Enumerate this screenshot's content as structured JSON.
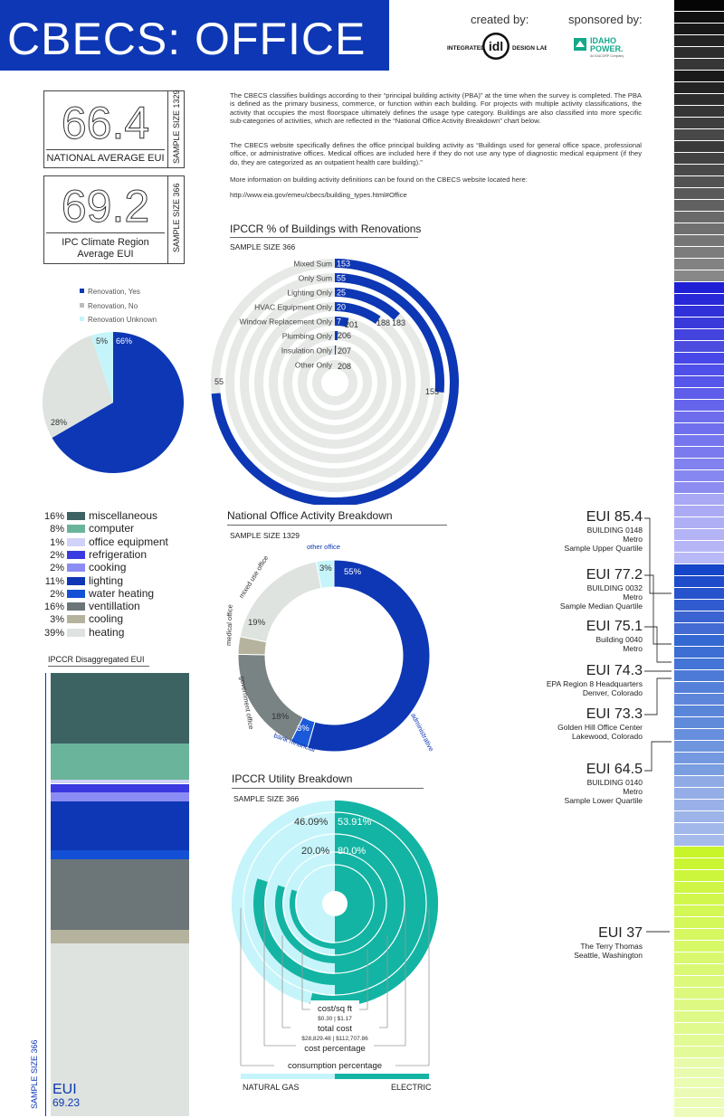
{
  "header": {
    "title": "CBECS: OFFICE",
    "created_by": "created by:",
    "sponsored_by": "sponsored by:",
    "idl_logo_text": "INTEGRATED idl DESIGN LAB",
    "idaho_power_logo_text": "IDAHO POWER An IDACORP Company"
  },
  "stats": {
    "national": {
      "value": "66.4",
      "caption": "NATIONAL AVERAGE EUI",
      "sample": "SAMPLE SIZE 1329"
    },
    "region": {
      "value": "69.2",
      "caption": "IPC Climate Region Average EUI",
      "sample": "SAMPLE SIZE 366"
    }
  },
  "intro": {
    "p1": "The CBECS classifies buildings according to their “principal building activity (PBA)” at the time when the survey is completed.  The PBA is defined as the primary business, commerce, or function within each building.  For projects with multiple activity classifications, the activity that occupies the most floorspace ultimately defines the usage type category.  Buildings are also classified into more specific sub-categories of activities, which are reflected in the “National Office Activity Breakdown” chart below.",
    "p2": "The CBECS website specifically defines the office principal building activity as “Buildings used for general office space, professional office, or administrative offices. Medical offices are included here if they do not use any type of diagnostic medical equipment (if they do, they are categorized as an outpatient health care building).”",
    "p3": "More information on building activity definitions can be found on the CBECS website located here:",
    "url": "http://www.eia.gov/emeu/cbecs/building_types.html#Office"
  },
  "chart_data": [
    {
      "id": "renovation-pie",
      "type": "pie",
      "labels": [
        "Renovation, Yes",
        "Renovation, No",
        "Renovation Unknown"
      ],
      "values": [
        66,
        28,
        5
      ],
      "value_labels": [
        "66%",
        "28%",
        "5%"
      ],
      "colors": [
        "#0d37b4",
        "#dee3df",
        "#c5f5fa"
      ]
    },
    {
      "id": "renovation-radial",
      "type": "bar",
      "title": "IPCCR % of Buildings with Renovations",
      "sample": "SAMPLE SIZE 366",
      "categories": [
        "Mixed Sum",
        "Only Sum",
        "Lighting Only",
        "HVAC Equipment Only",
        "Window Replacement Only",
        "Plumbing Only",
        "Insulation Only",
        "Other Only"
      ],
      "series": [
        {
          "name": "Renovation",
          "values": [
            153,
            55,
            25,
            20,
            7,
            2,
            1,
            0
          ]
        },
        {
          "name": "No Renovation",
          "values": [
            55,
            153,
            183,
            188,
            201,
            206,
            207,
            208
          ]
        }
      ],
      "total": 208,
      "yes_labels": [
        "153",
        "55",
        "25",
        "20",
        "7",
        "",
        "",
        ""
      ],
      "no_labels": [
        "55",
        "153",
        "183",
        "188",
        "201",
        "206",
        "207",
        "208"
      ]
    },
    {
      "id": "end-use",
      "type": "bar",
      "title": "IPCCR Disaggregated EUI",
      "categories": [
        "miscellaneous",
        "computer",
        "office equipment",
        "refrigeration",
        "cooking",
        "lighting",
        "water heating",
        "ventillation",
        "cooling",
        "heating"
      ],
      "values": [
        16,
        8,
        1,
        2,
        2,
        11,
        2,
        16,
        3,
        39
      ],
      "value_labels": [
        "16%",
        "8%",
        "1%",
        "2%",
        "2%",
        "11%",
        "2%",
        "16%",
        "3%",
        "39%"
      ],
      "colors": [
        "#3d6262",
        "#6ab49b",
        "#d1d2f8",
        "#3a3ae0",
        "#8c8cf5",
        "#0d37b4",
        "#1350d6",
        "#6c7678",
        "#b5b39d",
        "#dee3df"
      ],
      "sample": "SAMPLE SIZE 366",
      "eui_label": "EUI",
      "eui_value": "69.23"
    },
    {
      "id": "activity-donut",
      "type": "pie",
      "title": "National Office Activity Breakdown",
      "sample": "SAMPLE SIZE 1329",
      "labels": [
        "administrative",
        "bank /financial",
        "government office",
        "medical office",
        "mixed use office",
        "other office"
      ],
      "values": [
        55,
        3,
        18,
        3,
        19,
        3
      ],
      "value_labels": [
        "55%",
        "3%",
        "18%",
        "3%",
        "19%",
        "3%"
      ],
      "colors": [
        "#0d37b4",
        "#1a5ad8",
        "#7a8384",
        "#b5b39d",
        "#dee3df",
        "#c5f5fa"
      ]
    },
    {
      "id": "utility",
      "type": "pie",
      "title": "IPCCR Utility Breakdown",
      "sample": "SAMPLE SIZE 366",
      "categories": [
        "consumption percentage",
        "cost percentage",
        "total cost",
        "cost/sq ft"
      ],
      "series": [
        {
          "name": "NATURAL GAS",
          "values": [
            46.09,
            20.0,
            28829.48,
            0.3
          ]
        },
        {
          "name": "ELECTRIC",
          "values": [
            53.91,
            80.0,
            112707.86,
            1.17
          ]
        }
      ],
      "labels": {
        "cons_gas": "46.09%",
        "cons_elec": "53.91%",
        "costpct_gas": "20.0%",
        "costpct_elec": "80.0%",
        "cost_sqft_title": "cost/sq ft",
        "cost_sqft_values": "$0.30 | $1.17",
        "total_title": "total cost",
        "total_values": "$28,829.48 | $112,707.86",
        "cost_pct_title": "cost percentage",
        "cons_pct_title": "consumption percentage",
        "gas": "NATURAL GAS",
        "electric": "ELECTRIC"
      },
      "colors": {
        "gas": "#c5f5fa",
        "electric": "#13b4a3"
      }
    }
  ],
  "eui_examples": [
    {
      "eui": "EUI 85.4",
      "lines": [
        "BUILDING 0148",
        "Metro",
        "Sample Upper Quartile"
      ]
    },
    {
      "eui": "EUI 77.2",
      "lines": [
        "BUILDING 0032",
        "Metro",
        "Sample Median Quartile"
      ]
    },
    {
      "eui": "EUI 75.1",
      "lines": [
        "Building 0040",
        "Metro"
      ]
    },
    {
      "eui": "EUI 74.3",
      "lines": [
        "EPA Region 8 Headquarters",
        "Denver, Colorado"
      ]
    },
    {
      "eui": "EUI 73.3",
      "lines": [
        "Golden Hill Office Center",
        "Lakewood, Colorado"
      ]
    },
    {
      "eui": "EUI 64.5",
      "lines": [
        "BUILDING 0140",
        "Metro",
        "Sample Lower Quartile"
      ]
    },
    {
      "eui": "EUI 37",
      "lines": [
        "The Terry Thomas",
        "Seattle, Washington"
      ]
    }
  ],
  "colors": {
    "brand_blue": "#0d37b4",
    "teal": "#13b4a3",
    "lime": "#d8f84a"
  }
}
